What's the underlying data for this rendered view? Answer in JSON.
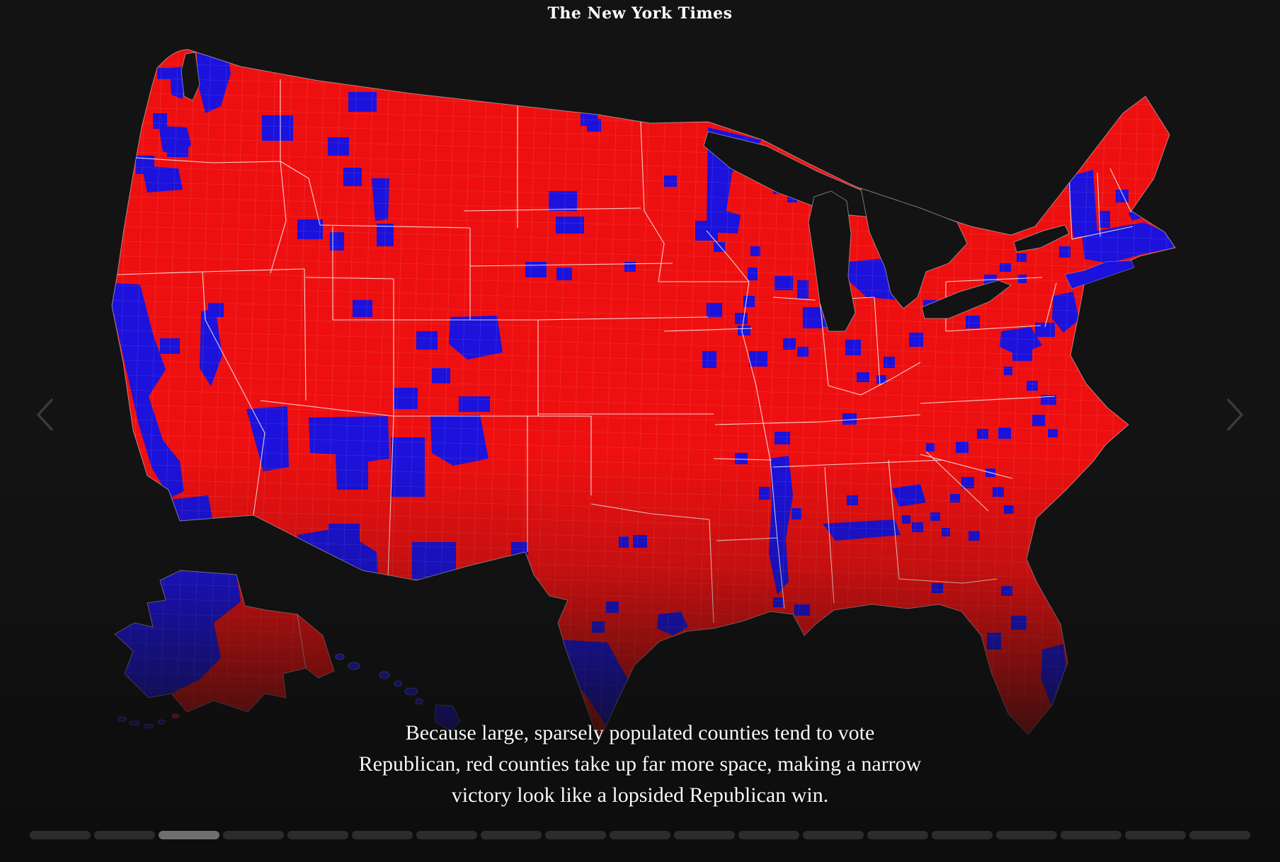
{
  "masthead": {
    "logo_text": "The New York Times"
  },
  "slide": {
    "caption_lines": [
      "Because large, sparsely populated counties tend to vote",
      "Republican, red counties take up far more space, making a narrow",
      "victory look like a lopsided Republican win."
    ]
  },
  "navigation": {
    "previous_label": "Previous slide",
    "next_label": "Next slide"
  },
  "progress": {
    "total_segments": 19,
    "active_index": 2
  },
  "map": {
    "kind": "county-choropleth",
    "colors": {
      "republican_red": "#ee1010",
      "democratic_blue": "#1c12dc",
      "page_background": "#131313",
      "state_border": "#f2f2f2",
      "coastline": "#c8c8c8",
      "inactive_segment": "#2c2c2c",
      "active_segment": "#6f6f6f"
    }
  }
}
